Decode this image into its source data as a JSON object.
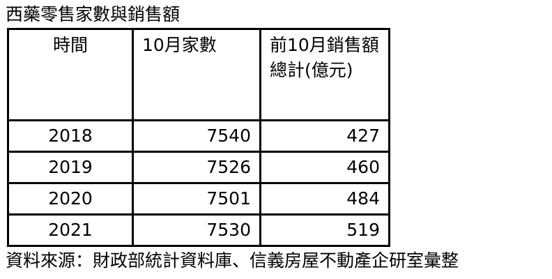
{
  "title": "西藥零售家數與銷售額",
  "table": {
    "headers": [
      "時間",
      "10月家數",
      "前10月銷售額總計(億元)"
    ],
    "rows": [
      [
        "2018",
        "7540",
        "427"
      ],
      [
        "2019",
        "7526",
        "460"
      ],
      [
        "2020",
        "7501",
        "484"
      ],
      [
        "2021",
        "7530",
        "519"
      ]
    ]
  },
  "source": "資料來源：財政部統計資料庫、信義房屋不動產企研室彙整"
}
